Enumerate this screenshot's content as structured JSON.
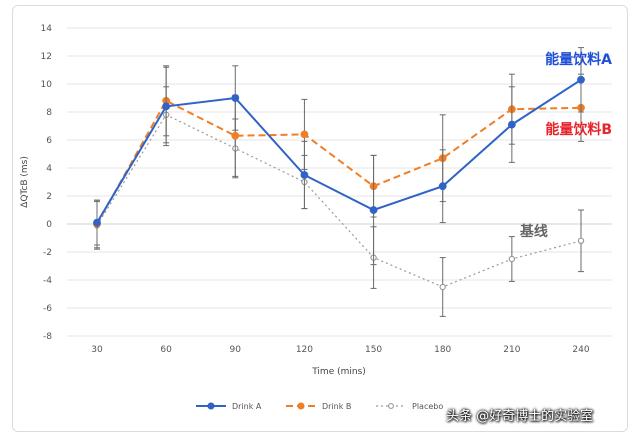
{
  "chart_data": {
    "type": "line",
    "xlabel": "Time (mins)",
    "ylabel": "ΔQTcB (ms)",
    "ylim": [
      -8,
      14
    ],
    "yticks": [
      -8,
      -6,
      -4,
      -2,
      0,
      2,
      4,
      6,
      8,
      10,
      12,
      14
    ],
    "x": [
      30,
      60,
      90,
      120,
      150,
      180,
      210,
      240
    ],
    "grid": "horizontal",
    "legend_position": "bottom",
    "series": [
      {
        "name": "Drink A",
        "color": "#2f63c6",
        "style": "solid",
        "values": [
          0.1,
          8.4,
          9.0,
          3.5,
          1.0,
          2.7,
          7.1,
          10.3
        ],
        "errors": [
          1.6,
          2.8,
          2.3,
          2.4,
          3.9,
          2.6,
          2.7,
          2.3
        ]
      },
      {
        "name": "Drink B",
        "color": "#f07e26",
        "style": "dashed",
        "values": [
          0.0,
          8.8,
          6.3,
          6.4,
          2.7,
          4.7,
          8.2,
          8.3
        ],
        "errors": [
          1.7,
          2.5,
          2.9,
          2.5,
          2.2,
          3.1,
          2.5,
          2.4
        ]
      },
      {
        "name": "Placebo",
        "color": "#9a9a9a",
        "style": "dotted",
        "values": [
          -0.1,
          7.8,
          5.4,
          3.0,
          -2.4,
          -4.5,
          -2.5,
          -1.2
        ],
        "errors": [
          1.7,
          2.0,
          2.1,
          1.9,
          2.2,
          2.1,
          1.6,
          2.2
        ]
      }
    ],
    "annotations": [
      {
        "text": "能量饮料A",
        "color": "#1f4fd8",
        "x": 240,
        "y": 11.8
      },
      {
        "text": "能量饮料B",
        "color": "#e8232b",
        "x": 240,
        "y": 6.8
      },
      {
        "text": "基线",
        "color": "#666666",
        "x": 210,
        "y": -0.5
      }
    ]
  },
  "watermark": "头条 @好奇博士的实验室"
}
